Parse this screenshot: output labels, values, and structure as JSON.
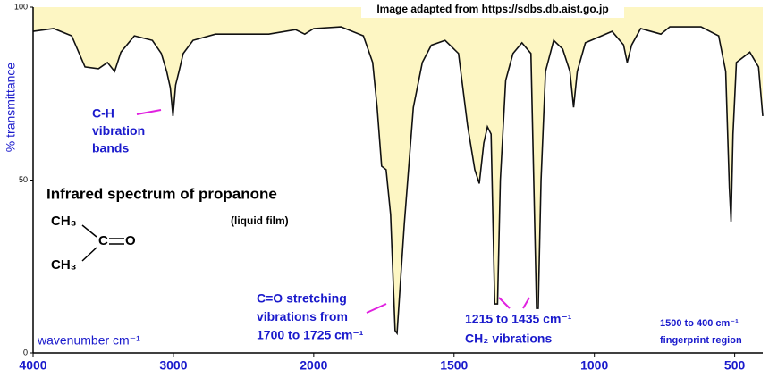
{
  "chart_data": {
    "type": "line",
    "source_note": "Image adapted from https://sdbs.db.aist.go.jp",
    "title": "Infrared spectrum of propanone",
    "subtitle": "(liquid film)",
    "y_label": "% transmittance",
    "x_label": "wavenumber  cm⁻¹",
    "molecule": [
      "CH₃",
      "C",
      "O",
      "CH₃"
    ],
    "annotations": [
      [
        "C-H",
        "vibration",
        "bands"
      ],
      [
        "C=O stretching",
        "vibrations from",
        "1700 to 1725 cm⁻¹"
      ],
      [
        "1215 to 1435 cm⁻¹",
        "CH₂ vibrations"
      ],
      [
        "1500 to 400 cm⁻¹",
        "fingerprint region"
      ]
    ],
    "xlim": [
      4000,
      400
    ],
    "ylim": [
      0,
      100
    ],
    "xticks": [
      4000,
      3000,
      2000,
      1500,
      1000,
      500
    ],
    "yticks": [
      0,
      50,
      100
    ],
    "color": "#111111",
    "fill_color": "#fdf6c3",
    "series": [
      {
        "name": "propanone",
        "color": "#111111",
        "x": [
          4000,
          3853,
          3725,
          3630,
          3534,
          3470,
          3419,
          3374,
          3278,
          3150,
          3086,
          3048,
          3022,
          3003,
          2984,
          2960,
          2930,
          2860,
          2700,
          2320,
          2130,
          2064,
          2000,
          1903,
          1823,
          1790,
          1774,
          1758,
          1742,
          1726,
          1710,
          1703,
          1694,
          1677,
          1645,
          1613,
          1581,
          1532,
          1484,
          1452,
          1426,
          1410,
          1394,
          1381,
          1368,
          1355,
          1345,
          1335,
          1316,
          1290,
          1258,
          1226,
          1216,
          1206,
          1200,
          1190,
          1174,
          1145,
          1113,
          1087,
          1074,
          1061,
          1032,
          937,
          896,
          883,
          867,
          835,
          763,
          731,
          620,
          557,
          532,
          519,
          513,
          506,
          494,
          446,
          415,
          400
        ],
        "values": [
          93,
          93.8,
          91.7,
          82.7,
          82.2,
          84,
          81.4,
          87,
          91.7,
          90.4,
          86.6,
          81.4,
          76.7,
          68.5,
          77.5,
          81.4,
          86.6,
          90.4,
          92.2,
          92.2,
          93.5,
          92.2,
          93.8,
          94.3,
          91.7,
          84,
          71,
          54,
          53,
          40,
          6.5,
          5.7,
          16.8,
          37.5,
          71,
          84,
          89,
          90.4,
          86.6,
          65.9,
          53,
          49,
          60.7,
          65.4,
          63.3,
          14.2,
          14.2,
          50,
          78.8,
          86.6,
          89.7,
          86.6,
          50,
          12.9,
          12.9,
          50,
          81.4,
          90.4,
          87.9,
          81.4,
          71,
          81.4,
          89.7,
          93,
          89.1,
          84,
          89.1,
          93.8,
          92.2,
          94.3,
          94.3,
          91.7,
          81.4,
          47.8,
          38,
          63.3,
          84,
          87,
          82.7,
          68.5
        ]
      }
    ]
  }
}
